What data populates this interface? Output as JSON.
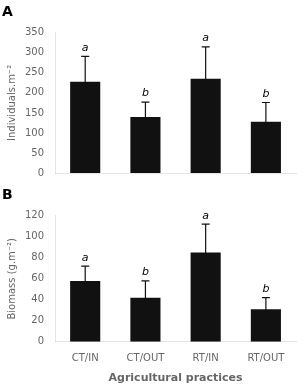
{
  "chart_data": [
    {
      "type": "bar",
      "title": "A",
      "categories": [
        "CT/IN",
        "CT/OUT",
        "RT/IN",
        "RT/OUT"
      ],
      "values": [
        228,
        140,
        235,
        128
      ],
      "errors": [
        63,
        37,
        80,
        48
      ],
      "color": "#111111",
      "ylabel": "Individuals.m⁻²",
      "ylim": [
        0,
        350
      ],
      "yticks": [
        0,
        50,
        100,
        150,
        200,
        250,
        300,
        350
      ],
      "annotations": [
        {
          "x": "CT/IN",
          "text": "a"
        },
        {
          "x": "CT/OUT",
          "text": "b"
        },
        {
          "x": "RT/IN",
          "text": "a"
        },
        {
          "x": "RT/OUT",
          "text": "b"
        }
      ],
      "tick_labels": "y",
      "grid": false
    },
    {
      "type": "bar",
      "title": "B",
      "categories": [
        "CT/IN",
        "CT/OUT",
        "RT/IN",
        "RT/OUT"
      ],
      "values": [
        58,
        42,
        85,
        31
      ],
      "errors": [
        14,
        16,
        27,
        11
      ],
      "color": "#111111",
      "xlabel": "Agricultural practices",
      "ylabel": "Biomass (g.m⁻²)",
      "ylim": [
        0,
        120
      ],
      "yticks": [
        0,
        20,
        40,
        60,
        80,
        100,
        120
      ],
      "annotations": [
        {
          "x": "CT/IN",
          "text": "a"
        },
        {
          "x": "CT/OUT",
          "text": "b"
        },
        {
          "x": "RT/IN",
          "text": "a"
        },
        {
          "x": "RT/OUT",
          "text": "b"
        }
      ],
      "grid": false
    }
  ]
}
